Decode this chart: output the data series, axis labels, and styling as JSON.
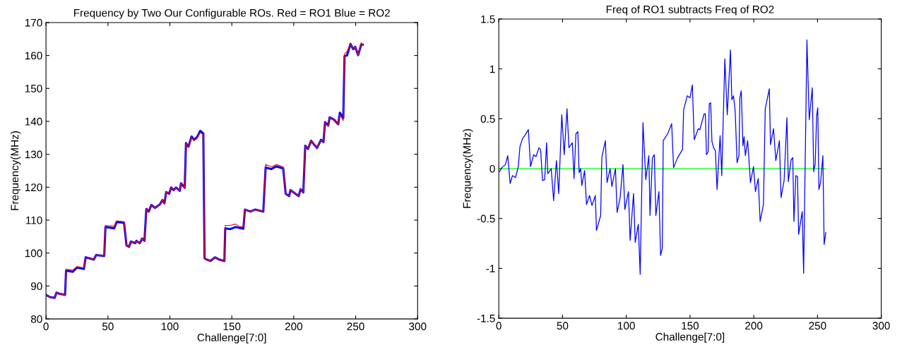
{
  "chart_data": [
    {
      "type": "line",
      "title": "Frequency by Two Our Configurable ROs. Red = RO1 Blue = RO2",
      "xlabel": "Challenge[7:0]",
      "ylabel": "Frequency(MHz)",
      "xlim": [
        0,
        300
      ],
      "xticks": [
        0,
        50,
        100,
        150,
        200,
        250,
        300
      ],
      "ylim": [
        80,
        170
      ],
      "yticks": [
        80,
        90,
        100,
        110,
        120,
        130,
        140,
        150,
        160,
        170
      ],
      "grid": false,
      "x": [
        0,
        3.4,
        7,
        8.5,
        11,
        15.4,
        16.2,
        21.5,
        25,
        30.6,
        32,
        38.6,
        40.5,
        47,
        48,
        55,
        57,
        63,
        65,
        67,
        68.6,
        72,
        73,
        75.7,
        77.6,
        79.5,
        81,
        83,
        85,
        88,
        92,
        94,
        95.6,
        97,
        99.4,
        101,
        103,
        105,
        108,
        109,
        112,
        113,
        115,
        117.5,
        119.4,
        122,
        124.5,
        127,
        128,
        130,
        132.7,
        136.5,
        140,
        144,
        144.7,
        149,
        153,
        156.5,
        159.3,
        160.6,
        165,
        168.8,
        175.4,
        177.3,
        182,
        185.8,
        191.5,
        193.5,
        196.3,
        197.3,
        204,
        205.5,
        207.7,
        209.3,
        211.5,
        214,
        216.3,
        218.8,
        222,
        224,
        225.3,
        227.8,
        229,
        232.5,
        235.9,
        237.2,
        240,
        241,
        243,
        245.8,
        248,
        249.6,
        252,
        254.4,
        255.7
      ],
      "series": [
        {
          "color": "#0000ff",
          "values": [
            87.3,
            86.6,
            86.4,
            88.0,
            87.6,
            87.3,
            94.7,
            94.3,
            95.6,
            95.2,
            98.7,
            98.0,
            99.4,
            99.1,
            107.9,
            107.5,
            109.4,
            109.2,
            102.3,
            101.9,
            103.5,
            103.0,
            103.7,
            103.0,
            104.4,
            103.7,
            113.4,
            112.6,
            114.6,
            113.7,
            114.8,
            116.1,
            115.1,
            118.5,
            118.0,
            119.9,
            119.1,
            119.9,
            118.9,
            121.2,
            119.8,
            133.4,
            132.3,
            135.4,
            134.4,
            135.2,
            137.1,
            136.3,
            98.4,
            98.0,
            97.6,
            98.7,
            98.0,
            97.6,
            107.5,
            107.3,
            107.9,
            107.6,
            107.4,
            113.2,
            112.6,
            113.2,
            112.6,
            126.0,
            125.5,
            126.3,
            125.7,
            118.0,
            117.3,
            119.1,
            117.3,
            119.4,
            118.4,
            132.6,
            131.6,
            134.1,
            133.0,
            131.9,
            134.4,
            133.7,
            139.8,
            138.7,
            141.2,
            140.5,
            139.1,
            142.6,
            141.0,
            159.8,
            160.0,
            163.5,
            161.9,
            162.6,
            160.1,
            163.3,
            163.3
          ]
        },
        {
          "color": "#ff0000",
          "values": [
            87.3,
            86.6,
            86.4,
            88.0,
            87.6,
            87.3,
            95.1,
            94.8,
            95.9,
            95.5,
            98.7,
            98.0,
            99.4,
            99.1,
            108.4,
            108.1,
            109.8,
            109.5,
            102.3,
            101.9,
            103.5,
            103.0,
            103.7,
            103.0,
            104.4,
            103.7,
            113.4,
            112.6,
            114.6,
            113.7,
            114.8,
            116.1,
            115.1,
            118.5,
            118.0,
            119.9,
            119.1,
            119.9,
            118.9,
            121.2,
            119.8,
            133.4,
            132.3,
            135.1,
            134.1,
            134.8,
            136.6,
            135.9,
            98.4,
            98.0,
            97.6,
            98.7,
            98.0,
            97.6,
            108.4,
            108.4,
            108.8,
            108.0,
            108.0,
            113.2,
            112.6,
            113.2,
            112.6,
            126.9,
            126.2,
            126.9,
            126.1,
            118.0,
            117.3,
            119.1,
            117.3,
            119.4,
            118.4,
            132.6,
            131.6,
            134.1,
            133.0,
            131.9,
            134.4,
            133.7,
            139.8,
            138.7,
            141.2,
            140.5,
            139.1,
            142.1,
            140.2,
            160.5,
            161.2,
            163.5,
            161.9,
            162.6,
            160.1,
            163.9,
            163.0
          ]
        }
      ]
    },
    {
      "type": "line",
      "title": "Freq of RO1 subtracts Freq of RO2",
      "xlabel": "Challenge[7:0]",
      "ylabel": "Frequency(MHz)",
      "xlim": [
        0,
        300
      ],
      "xticks": [
        0,
        50,
        100,
        150,
        200,
        250,
        300
      ],
      "ylim": [
        -1.5,
        1.5
      ],
      "yticks": [
        -1.5,
        -1,
        -0.5,
        0,
        0.5,
        1,
        1.5
      ],
      "grid": false,
      "series": [
        {
          "color": "#00ff00",
          "x": [
            0,
            256.5
          ],
          "values": [
            0,
            0
          ]
        },
        {
          "color": "#0000ff",
          "x": [
            0.6,
            2.4,
            5.2,
            7,
            8.9,
            10.7,
            13.1,
            15.3,
            16.6,
            18.6,
            20.8,
            23.2,
            24.9,
            27.3,
            29.2,
            31.5,
            32.8,
            34.3,
            36,
            37.5,
            38.4,
            41.1,
            43,
            45.2,
            47,
            49.4,
            51.3,
            53.5,
            55,
            57.7,
            59,
            60.5,
            62,
            63,
            64.2,
            65.1,
            67.3,
            68.8,
            71.2,
            73.1,
            75.7,
            76.6,
            79.9,
            80.8,
            83.6,
            84.9,
            87.3,
            88.7,
            91.5,
            92.8,
            95.2,
            97.4,
            98.9,
            101.7,
            103,
            105.7,
            107,
            109.4,
            110.9,
            113.1,
            115.3,
            117.7,
            118.6,
            120.5,
            122,
            123.2,
            125.6,
            126.9,
            128.2,
            129,
            132.5,
            135.6,
            137.1,
            139.9,
            142.6,
            144.1,
            145,
            147.8,
            150,
            151.8,
            153.3,
            156.5,
            157.7,
            161.1,
            162,
            162.9,
            164.2,
            165.1,
            166.2,
            167.2,
            168.5,
            169.9,
            171.2,
            173.6,
            174.9,
            177.3,
            179.2,
            181.7,
            182.8,
            184.1,
            185.4,
            186.9,
            188.4,
            189.1,
            190.2,
            191.5,
            192.4,
            193.4,
            195.2,
            197.4,
            199.8,
            201.3,
            203.5,
            205,
            207.6,
            209,
            212.2,
            213.1,
            215.5,
            217.3,
            220.1,
            221.4,
            223.8,
            226,
            227.1,
            229.3,
            230.6,
            231.5,
            233,
            234.3,
            235.2,
            238,
            239.1,
            241.7,
            243.5,
            245.9,
            247,
            248.2,
            249.3,
            250.2,
            251.1,
            252.4,
            254.2,
            255.2,
            256.5
          ],
          "values": [
            -0.03,
            0.01,
            0.04,
            0.13,
            -0.15,
            -0.07,
            -0.09,
            0.02,
            0.22,
            0.3,
            0.34,
            0.39,
            0.02,
            0.14,
            0.12,
            0.21,
            0.19,
            -0.12,
            -0.11,
            0.26,
            -0.05,
            0.0,
            -0.32,
            0.08,
            -0.25,
            0.54,
            0.14,
            0.6,
            0.21,
            0.26,
            -0.1,
            0.35,
            0.37,
            -0.04,
            0.0,
            -0.17,
            -0.02,
            -0.36,
            -0.27,
            -0.37,
            -0.27,
            -0.62,
            -0.47,
            0.11,
            0.28,
            -0.14,
            0.0,
            -0.18,
            0.0,
            -0.44,
            -0.29,
            0.04,
            -0.41,
            -0.23,
            -0.72,
            -0.25,
            -0.74,
            -0.56,
            -1.06,
            0.46,
            -0.11,
            0.13,
            -0.47,
            0.11,
            0.14,
            -0.47,
            -0.23,
            -0.87,
            -0.8,
            0.28,
            0.35,
            0.45,
            0.01,
            0.1,
            0.16,
            0.19,
            0.59,
            0.73,
            0.71,
            0.84,
            0.29,
            0.4,
            0.39,
            0.55,
            0.55,
            0.14,
            0.17,
            0.65,
            0.66,
            0.27,
            0.21,
            0.18,
            -0.21,
            0.33,
            -0.07,
            1.1,
            0.54,
            1.19,
            0.69,
            0.73,
            0.58,
            0.06,
            0.13,
            0.71,
            0.78,
            0.23,
            0.32,
            0.13,
            0.28,
            -0.14,
            0.02,
            -0.23,
            -0.1,
            -0.53,
            -0.36,
            0.6,
            0.8,
            0.24,
            0.4,
            0.08,
            0.28,
            -0.29,
            -0.12,
            0.51,
            -0.13,
            0.09,
            0.11,
            -0.53,
            -0.07,
            -0.08,
            -0.66,
            -0.43,
            -1.05,
            1.29,
            0.49,
            0.81,
            -0.03,
            0.05,
            0.53,
            0.61,
            -0.21,
            -0.14,
            0.13,
            -0.76,
            -0.64
          ]
        }
      ]
    }
  ]
}
